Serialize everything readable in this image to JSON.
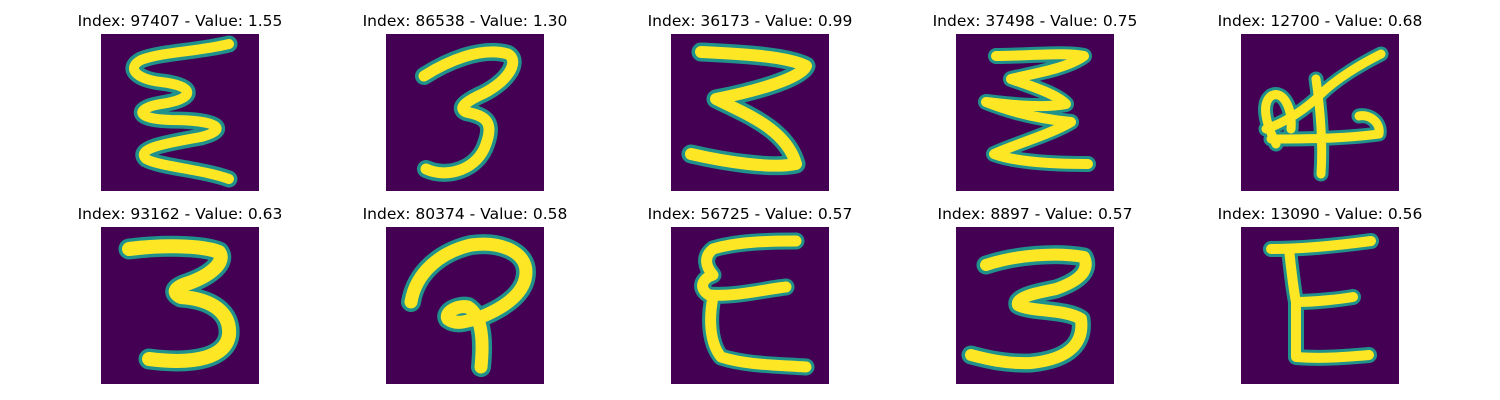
{
  "colors": {
    "background": "#440154",
    "stroke_edge": "#21918c",
    "stroke_mid": "#5ec962",
    "stroke_core": "#fde725"
  },
  "panels": [
    {
      "title": "Index: 97407 - Value: 1.55",
      "index": 97407,
      "value": 1.55,
      "glyph": "wavy-e"
    },
    {
      "title": "Index: 86538 - Value: 1.30",
      "index": 86538,
      "value": 1.3,
      "glyph": "three"
    },
    {
      "title": "Index: 36173 - Value: 0.99",
      "index": 36173,
      "value": 0.99,
      "glyph": "zigzag-three"
    },
    {
      "title": "Index: 37498 - Value: 0.75",
      "index": 37498,
      "value": 0.75,
      "glyph": "zigzag-e"
    },
    {
      "title": "Index: 12700 - Value: 0.68",
      "index": 12700,
      "value": 0.68,
      "glyph": "four-like"
    },
    {
      "title": "Index: 93162 - Value: 0.63",
      "index": 93162,
      "value": 0.63,
      "glyph": "bold-three"
    },
    {
      "title": "Index: 80374 - Value: 0.58",
      "index": 80374,
      "value": 0.58,
      "glyph": "p-like"
    },
    {
      "title": "Index: 56725 - Value: 0.57",
      "index": 56725,
      "value": 0.57,
      "glyph": "curly-e"
    },
    {
      "title": "Index: 8897 - Value: 0.57",
      "index": 8897,
      "value": 0.57,
      "glyph": "round-three"
    },
    {
      "title": "Index: 13090 - Value: 0.56",
      "index": 13090,
      "value": 0.56,
      "glyph": "block-e"
    }
  ]
}
